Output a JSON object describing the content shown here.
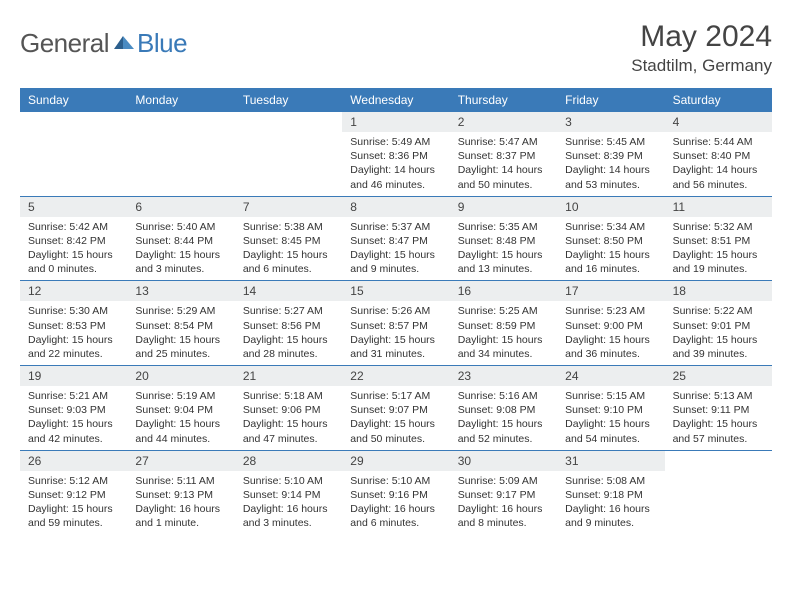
{
  "logo": {
    "general": "General",
    "blue": "Blue"
  },
  "title": "May 2024",
  "location": "Stadtilm, Germany",
  "colors": {
    "header_bg": "#3a7ab8",
    "daynum_bg": "#eceeef",
    "rule": "#3a7ab8",
    "text": "#333333"
  },
  "dow": [
    "Sunday",
    "Monday",
    "Tuesday",
    "Wednesday",
    "Thursday",
    "Friday",
    "Saturday"
  ],
  "weeks": [
    [
      {
        "blank": true
      },
      {
        "blank": true
      },
      {
        "blank": true
      },
      {
        "day": "1",
        "sunrise": "Sunrise: 5:49 AM",
        "sunset": "Sunset: 8:36 PM",
        "daylight": "Daylight: 14 hours and 46 minutes."
      },
      {
        "day": "2",
        "sunrise": "Sunrise: 5:47 AM",
        "sunset": "Sunset: 8:37 PM",
        "daylight": "Daylight: 14 hours and 50 minutes."
      },
      {
        "day": "3",
        "sunrise": "Sunrise: 5:45 AM",
        "sunset": "Sunset: 8:39 PM",
        "daylight": "Daylight: 14 hours and 53 minutes."
      },
      {
        "day": "4",
        "sunrise": "Sunrise: 5:44 AM",
        "sunset": "Sunset: 8:40 PM",
        "daylight": "Daylight: 14 hours and 56 minutes."
      }
    ],
    [
      {
        "day": "5",
        "sunrise": "Sunrise: 5:42 AM",
        "sunset": "Sunset: 8:42 PM",
        "daylight": "Daylight: 15 hours and 0 minutes."
      },
      {
        "day": "6",
        "sunrise": "Sunrise: 5:40 AM",
        "sunset": "Sunset: 8:44 PM",
        "daylight": "Daylight: 15 hours and 3 minutes."
      },
      {
        "day": "7",
        "sunrise": "Sunrise: 5:38 AM",
        "sunset": "Sunset: 8:45 PM",
        "daylight": "Daylight: 15 hours and 6 minutes."
      },
      {
        "day": "8",
        "sunrise": "Sunrise: 5:37 AM",
        "sunset": "Sunset: 8:47 PM",
        "daylight": "Daylight: 15 hours and 9 minutes."
      },
      {
        "day": "9",
        "sunrise": "Sunrise: 5:35 AM",
        "sunset": "Sunset: 8:48 PM",
        "daylight": "Daylight: 15 hours and 13 minutes."
      },
      {
        "day": "10",
        "sunrise": "Sunrise: 5:34 AM",
        "sunset": "Sunset: 8:50 PM",
        "daylight": "Daylight: 15 hours and 16 minutes."
      },
      {
        "day": "11",
        "sunrise": "Sunrise: 5:32 AM",
        "sunset": "Sunset: 8:51 PM",
        "daylight": "Daylight: 15 hours and 19 minutes."
      }
    ],
    [
      {
        "day": "12",
        "sunrise": "Sunrise: 5:30 AM",
        "sunset": "Sunset: 8:53 PM",
        "daylight": "Daylight: 15 hours and 22 minutes."
      },
      {
        "day": "13",
        "sunrise": "Sunrise: 5:29 AM",
        "sunset": "Sunset: 8:54 PM",
        "daylight": "Daylight: 15 hours and 25 minutes."
      },
      {
        "day": "14",
        "sunrise": "Sunrise: 5:27 AM",
        "sunset": "Sunset: 8:56 PM",
        "daylight": "Daylight: 15 hours and 28 minutes."
      },
      {
        "day": "15",
        "sunrise": "Sunrise: 5:26 AM",
        "sunset": "Sunset: 8:57 PM",
        "daylight": "Daylight: 15 hours and 31 minutes."
      },
      {
        "day": "16",
        "sunrise": "Sunrise: 5:25 AM",
        "sunset": "Sunset: 8:59 PM",
        "daylight": "Daylight: 15 hours and 34 minutes."
      },
      {
        "day": "17",
        "sunrise": "Sunrise: 5:23 AM",
        "sunset": "Sunset: 9:00 PM",
        "daylight": "Daylight: 15 hours and 36 minutes."
      },
      {
        "day": "18",
        "sunrise": "Sunrise: 5:22 AM",
        "sunset": "Sunset: 9:01 PM",
        "daylight": "Daylight: 15 hours and 39 minutes."
      }
    ],
    [
      {
        "day": "19",
        "sunrise": "Sunrise: 5:21 AM",
        "sunset": "Sunset: 9:03 PM",
        "daylight": "Daylight: 15 hours and 42 minutes."
      },
      {
        "day": "20",
        "sunrise": "Sunrise: 5:19 AM",
        "sunset": "Sunset: 9:04 PM",
        "daylight": "Daylight: 15 hours and 44 minutes."
      },
      {
        "day": "21",
        "sunrise": "Sunrise: 5:18 AM",
        "sunset": "Sunset: 9:06 PM",
        "daylight": "Daylight: 15 hours and 47 minutes."
      },
      {
        "day": "22",
        "sunrise": "Sunrise: 5:17 AM",
        "sunset": "Sunset: 9:07 PM",
        "daylight": "Daylight: 15 hours and 50 minutes."
      },
      {
        "day": "23",
        "sunrise": "Sunrise: 5:16 AM",
        "sunset": "Sunset: 9:08 PM",
        "daylight": "Daylight: 15 hours and 52 minutes."
      },
      {
        "day": "24",
        "sunrise": "Sunrise: 5:15 AM",
        "sunset": "Sunset: 9:10 PM",
        "daylight": "Daylight: 15 hours and 54 minutes."
      },
      {
        "day": "25",
        "sunrise": "Sunrise: 5:13 AM",
        "sunset": "Sunset: 9:11 PM",
        "daylight": "Daylight: 15 hours and 57 minutes."
      }
    ],
    [
      {
        "day": "26",
        "sunrise": "Sunrise: 5:12 AM",
        "sunset": "Sunset: 9:12 PM",
        "daylight": "Daylight: 15 hours and 59 minutes."
      },
      {
        "day": "27",
        "sunrise": "Sunrise: 5:11 AM",
        "sunset": "Sunset: 9:13 PM",
        "daylight": "Daylight: 16 hours and 1 minute."
      },
      {
        "day": "28",
        "sunrise": "Sunrise: 5:10 AM",
        "sunset": "Sunset: 9:14 PM",
        "daylight": "Daylight: 16 hours and 3 minutes."
      },
      {
        "day": "29",
        "sunrise": "Sunrise: 5:10 AM",
        "sunset": "Sunset: 9:16 PM",
        "daylight": "Daylight: 16 hours and 6 minutes."
      },
      {
        "day": "30",
        "sunrise": "Sunrise: 5:09 AM",
        "sunset": "Sunset: 9:17 PM",
        "daylight": "Daylight: 16 hours and 8 minutes."
      },
      {
        "day": "31",
        "sunrise": "Sunrise: 5:08 AM",
        "sunset": "Sunset: 9:18 PM",
        "daylight": "Daylight: 16 hours and 9 minutes."
      },
      {
        "blank": true
      }
    ]
  ]
}
